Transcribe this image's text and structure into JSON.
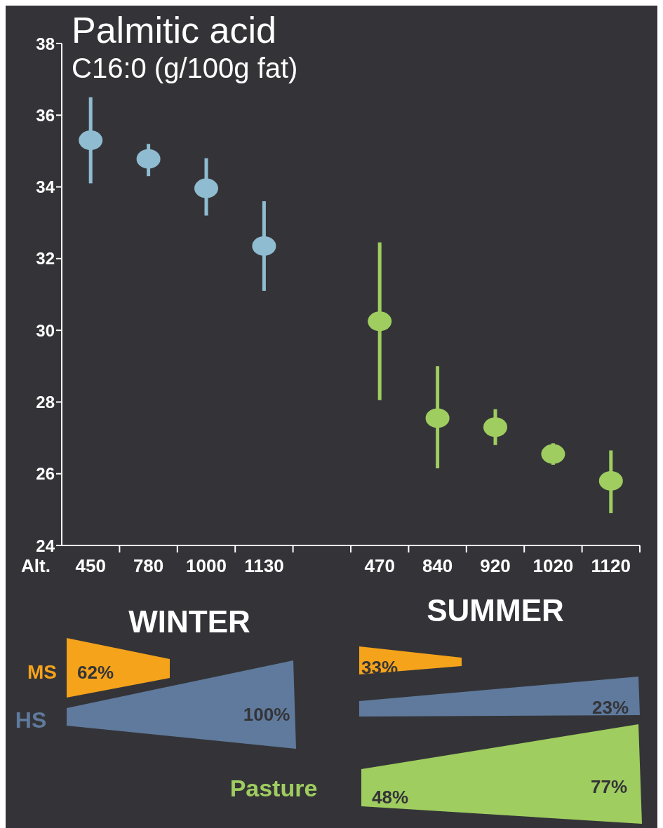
{
  "chart_data": {
    "type": "scatter",
    "title": "Palmitic acid",
    "subtitle": "C16:0 (g/100g fat)",
    "xlabel": "Alt.",
    "categories": [
      "450",
      "780",
      "1000",
      "1130",
      null,
      "470",
      "840",
      "920",
      "1020",
      "1120"
    ],
    "series": [
      {
        "color": "#8fbcd0",
        "values": [
          35.3,
          34.78,
          33.96,
          32.35,
          null,
          null,
          null,
          null,
          null,
          null
        ],
        "errors": [
          [
            34.1,
            36.5
          ],
          [
            34.3,
            35.2
          ],
          [
            33.2,
            34.8
          ],
          [
            31.1,
            33.6
          ],
          null,
          null,
          null,
          null,
          null,
          null
        ]
      },
      {
        "color": "#9fcd5f",
        "values": [
          null,
          null,
          null,
          null,
          null,
          30.25,
          27.55,
          27.3,
          26.55,
          25.8
        ],
        "errors": [
          null,
          null,
          null,
          null,
          null,
          [
            28.05,
            32.45
          ],
          [
            26.15,
            29.0
          ],
          [
            26.8,
            27.8
          ],
          [
            26.25,
            26.85
          ],
          [
            24.9,
            26.65
          ]
        ]
      }
    ],
    "ylim": [
      24,
      38
    ],
    "yticks": [
      24,
      26,
      28,
      30,
      32,
      34,
      36,
      38
    ],
    "marker": "circle",
    "annotations": [
      "WINTER",
      "SUMMER",
      "MS",
      "HS",
      "Pasture",
      "62%",
      "100%",
      "33%",
      "23%",
      "48%",
      "77%"
    ]
  }
}
